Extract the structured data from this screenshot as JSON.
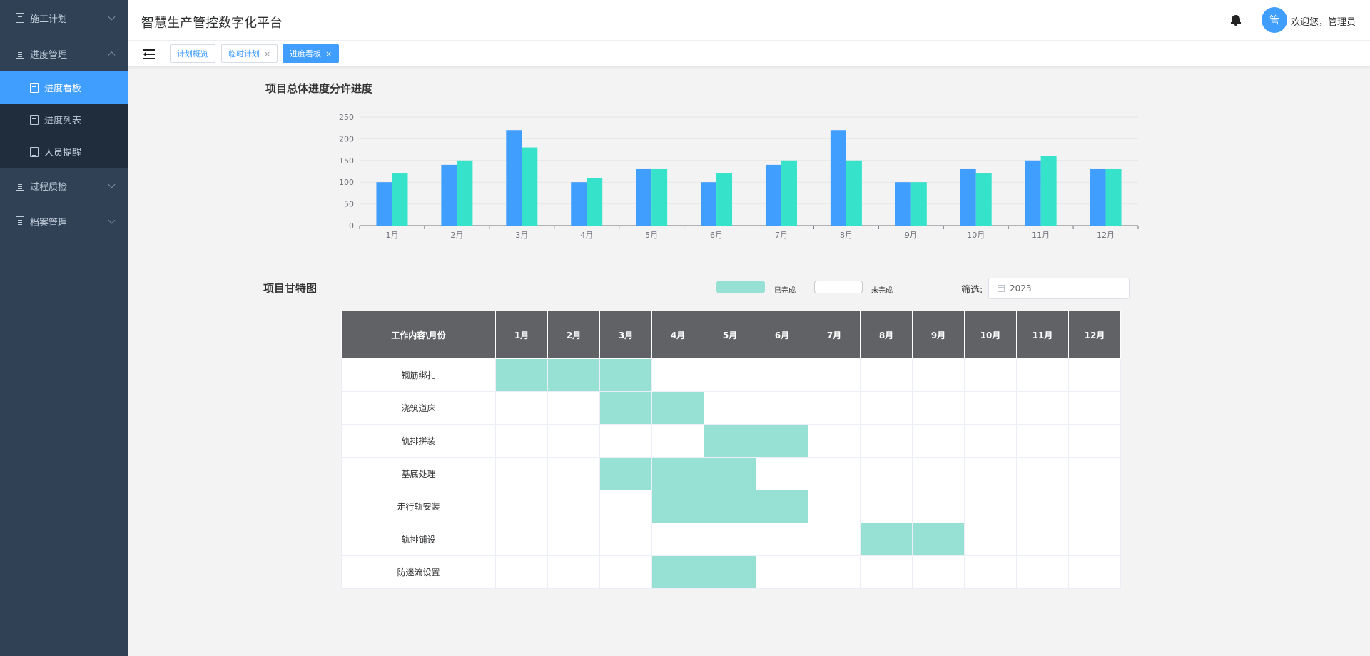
{
  "header": {
    "app_title": "智慧生产管控数字化平台",
    "avatar_text": "管",
    "welcome": "欢迎您，管理员"
  },
  "sidebar": {
    "items": [
      {
        "label": "施工计划",
        "expanded": false
      },
      {
        "label": "进度管理",
        "expanded": true,
        "children": [
          {
            "label": "进度看板",
            "active": true
          },
          {
            "label": "进度列表",
            "active": false
          },
          {
            "label": "人员提醒",
            "active": false
          }
        ]
      },
      {
        "label": "过程质检",
        "expanded": false
      },
      {
        "label": "档案管理",
        "expanded": false
      }
    ]
  },
  "tags": [
    {
      "label": "计划概览",
      "closable": false,
      "active": false
    },
    {
      "label": "临时计划",
      "closable": true,
      "active": false
    },
    {
      "label": "进度看板",
      "closable": true,
      "active": true
    }
  ],
  "tag_close": "×",
  "chart_section": {
    "title": "项目总体进度分许进度"
  },
  "chart_data": {
    "type": "bar",
    "categories": [
      "1月",
      "2月",
      "3月",
      "4月",
      "5月",
      "6月",
      "7月",
      "8月",
      "9月",
      "10月",
      "11月",
      "12月"
    ],
    "series": [
      {
        "values": [
          100,
          140,
          220,
          100,
          130,
          100,
          140,
          220,
          100,
          130,
          150,
          130
        ],
        "color": "#409eff"
      },
      {
        "values": [
          120,
          150,
          180,
          110,
          130,
          120,
          150,
          150,
          100,
          120,
          160,
          130
        ],
        "color": "#36e2c9"
      }
    ],
    "yticks": [
      0,
      50,
      100,
      150,
      200,
      250
    ],
    "ylim": [
      0,
      250
    ],
    "grid": true
  },
  "gantt": {
    "title": "项目甘特图",
    "legend": {
      "done_label": "已完成",
      "done_color": "#96e1d4",
      "todo_label": "未完成",
      "todo_color": "#ffffff"
    },
    "filter": {
      "label": "筛选:",
      "value": "2023"
    },
    "corner_header": "工作内容\\月份",
    "months": [
      "1月",
      "2月",
      "3月",
      "4月",
      "5月",
      "6月",
      "7月",
      "8月",
      "9月",
      "10月",
      "11月",
      "12月"
    ],
    "tasks": [
      {
        "name": "钢筋绑扎",
        "done_months": [
          1,
          2,
          3
        ]
      },
      {
        "name": "浇筑道床",
        "done_months": [
          3,
          4
        ]
      },
      {
        "name": "轨排拼装",
        "done_months": [
          5,
          6
        ]
      },
      {
        "name": "基底处理",
        "done_months": [
          3,
          4,
          5
        ]
      },
      {
        "name": "走行轨安装",
        "done_months": [
          4,
          5,
          6
        ]
      },
      {
        "name": "轨排铺设",
        "done_months": [
          8,
          9
        ]
      },
      {
        "name": "防迷流设置",
        "done_months": [
          4,
          5
        ]
      }
    ]
  }
}
